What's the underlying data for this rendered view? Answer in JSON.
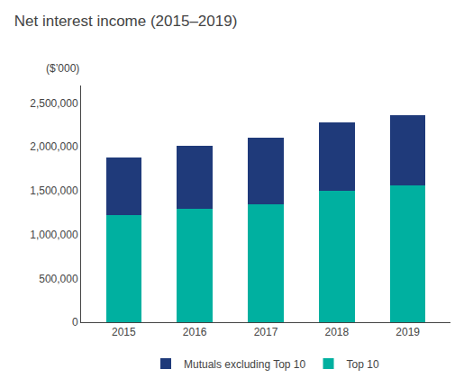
{
  "chart_data": {
    "type": "bar",
    "stacked": true,
    "title": "Net interest income (2015–2019)",
    "ylabel": "($’000)",
    "categories": [
      "2015",
      "2016",
      "2017",
      "2018",
      "2019"
    ],
    "series": [
      {
        "name": "Top 10",
        "color": "#00b0a0",
        "values": [
          1220000,
          1290000,
          1350000,
          1500000,
          1560000
        ]
      },
      {
        "name": "Mutuals excluding Top 10",
        "color": "#1f3a7a",
        "values": [
          660000,
          720000,
          750000,
          780000,
          800000
        ]
      }
    ],
    "ylim": [
      0,
      2700000
    ],
    "yticks": [
      0,
      {
        "value": 500000,
        "label": "500,000"
      },
      {
        "value": 1000000,
        "label": "1,000,000"
      },
      {
        "value": 1500000,
        "label": "1,500,000"
      },
      {
        "value": 2000000,
        "label": "2,000,000"
      },
      {
        "value": 2500000,
        "label": "2,500,000"
      }
    ],
    "grid": false,
    "legend": "bottom"
  }
}
